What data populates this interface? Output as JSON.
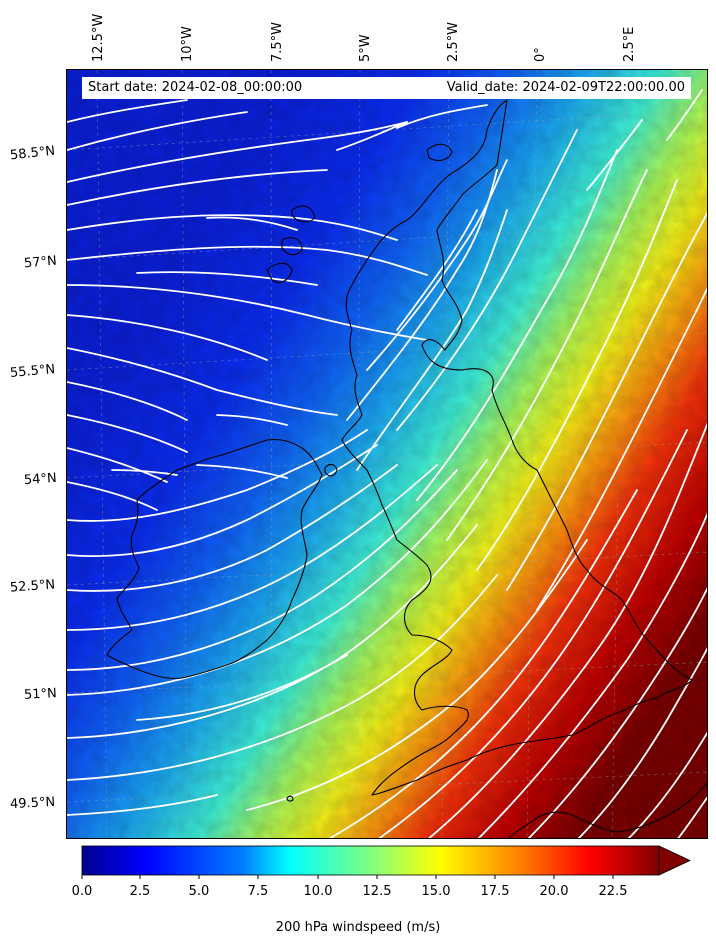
{
  "map": {
    "start_date_label": "Start date: 2024-02-08_00:00:00",
    "valid_date_label": "Valid_date: 2024-02-09T22:00:00.00",
    "lon_labels": [
      "12.5°W",
      "10°W",
      "7.5°W",
      "5°W",
      "2.5°W",
      "0°",
      "2.5°E"
    ],
    "lat_labels": [
      "58.5°N",
      "57°N",
      "55.5°N",
      "54°N",
      "52.5°N",
      "51°N",
      "49.5°N"
    ],
    "field": "200 hPa windspeed",
    "colormap": "jet",
    "streamline_color": "#ffffff",
    "coastline_color": "#000000"
  },
  "colorbar": {
    "label": "200 hPa windspeed (m/s)",
    "ticks": [
      "0.0",
      "2.5",
      "5.0",
      "7.5",
      "10.0",
      "12.5",
      "15.0",
      "17.5",
      "20.0",
      "22.5"
    ],
    "min": 0,
    "max": 25,
    "extend": "max"
  }
}
